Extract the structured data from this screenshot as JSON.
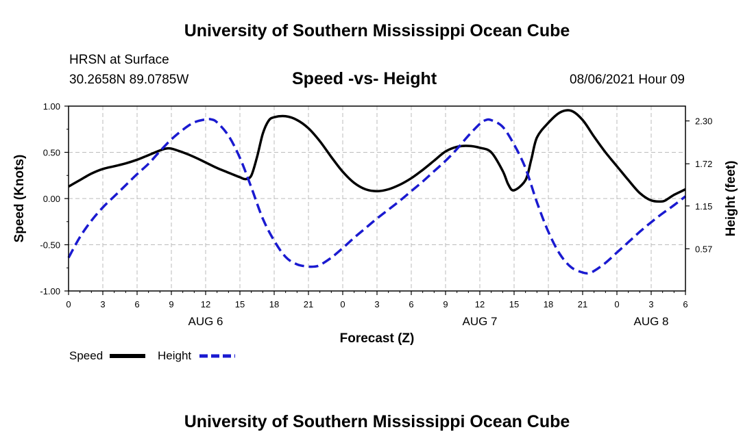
{
  "header": {
    "top_title": "University of Southern Mississippi Ocean Cube",
    "station": "HRSN at Surface",
    "coords": "30.2658N  89.0785W",
    "date": "08/06/2021 Hour 09",
    "bottom_title": "University of Southern Mississippi Ocean Cube"
  },
  "colors": {
    "speed": "#000000",
    "height": "#1a1ad0",
    "grid": "#bbbbbb"
  },
  "chart_data": {
    "type": "line",
    "title": "Speed -vs- Height",
    "xlabel": "Forecast (Z)",
    "ylabel": "Speed (Knots)",
    "y2label": "Height (feet)",
    "x_range": [
      0,
      54
    ],
    "ylim": [
      -1.0,
      1.0
    ],
    "y2lim": [
      0.0,
      2.5
    ],
    "x_tick_labels": [
      "0",
      "3",
      "6",
      "9",
      "12",
      "15",
      "18",
      "21",
      "0",
      "3",
      "6",
      "9",
      "12",
      "15",
      "18",
      "21",
      "0",
      "3",
      "6"
    ],
    "y_tick_values": [
      -1.0,
      -0.5,
      0.0,
      0.5,
      1.0
    ],
    "y_tick_labels": [
      "-1.00",
      "-0.50",
      "0.00",
      "0.50",
      "1.00"
    ],
    "y2_tick_values": [
      0.57,
      1.15,
      1.72,
      2.3
    ],
    "y2_tick_labels": [
      "0.57",
      "1.15",
      "1.72",
      "2.30"
    ],
    "day_labels": [
      {
        "label": "AUG 6",
        "x": 12
      },
      {
        "label": "AUG 7",
        "x": 36
      },
      {
        "label": "AUG 8",
        "x": 51
      }
    ],
    "series": [
      {
        "name": "Speed",
        "axis": "left",
        "style": "solid",
        "x": [
          0,
          1,
          2,
          3,
          4,
          5,
          6,
          7,
          8,
          8.5,
          9,
          10,
          11,
          12,
          13,
          14,
          15,
          15.5,
          16,
          16.5,
          17,
          17.5,
          18,
          19,
          20,
          21,
          22,
          23,
          24,
          25,
          26,
          27,
          28,
          29,
          30,
          31,
          32,
          33,
          34,
          35,
          36,
          37,
          38,
          38.5,
          39,
          40,
          40.5,
          41,
          42,
          43,
          44,
          45,
          46,
          47,
          48,
          49,
          50,
          51,
          52,
          52.5,
          53,
          54
        ],
        "values": [
          0.13,
          0.2,
          0.27,
          0.32,
          0.35,
          0.38,
          0.42,
          0.47,
          0.52,
          0.54,
          0.54,
          0.5,
          0.45,
          0.39,
          0.33,
          0.28,
          0.23,
          0.21,
          0.25,
          0.45,
          0.7,
          0.84,
          0.88,
          0.89,
          0.85,
          0.76,
          0.62,
          0.45,
          0.29,
          0.17,
          0.1,
          0.08,
          0.1,
          0.15,
          0.22,
          0.31,
          0.41,
          0.51,
          0.56,
          0.57,
          0.55,
          0.5,
          0.3,
          0.15,
          0.09,
          0.2,
          0.42,
          0.66,
          0.82,
          0.93,
          0.95,
          0.85,
          0.67,
          0.5,
          0.35,
          0.2,
          0.06,
          -0.02,
          -0.03,
          0.0,
          0.04,
          0.1
        ],
        "legend": "Speed"
      },
      {
        "name": "Height",
        "axis": "right",
        "style": "dashed",
        "x": [
          0,
          1,
          2,
          3,
          4,
          5,
          6,
          7,
          8,
          9,
          10,
          11,
          12,
          12.5,
          13,
          14,
          15,
          16,
          17,
          18,
          19,
          20,
          21,
          21.5,
          22,
          23,
          24,
          25,
          26,
          27,
          28,
          29,
          30,
          31,
          32,
          33,
          34,
          35,
          36,
          36.5,
          37,
          38,
          39,
          40,
          41,
          42,
          43,
          44,
          45,
          45.5,
          46,
          47,
          48,
          49,
          50,
          51,
          52,
          53,
          54
        ],
        "values": [
          0.45,
          0.73,
          0.95,
          1.13,
          1.28,
          1.43,
          1.58,
          1.72,
          1.89,
          2.05,
          2.18,
          2.28,
          2.32,
          2.32,
          2.28,
          2.1,
          1.8,
          1.4,
          0.98,
          0.68,
          0.46,
          0.36,
          0.33,
          0.33,
          0.35,
          0.45,
          0.58,
          0.72,
          0.85,
          0.98,
          1.1,
          1.22,
          1.35,
          1.48,
          1.62,
          1.76,
          1.92,
          2.1,
          2.26,
          2.31,
          2.31,
          2.22,
          1.98,
          1.66,
          1.2,
          0.8,
          0.5,
          0.32,
          0.25,
          0.24,
          0.27,
          0.38,
          0.52,
          0.66,
          0.8,
          0.93,
          1.05,
          1.16,
          1.28
        ],
        "legend": "Height"
      }
    ],
    "legend_position": "bottom-left"
  }
}
